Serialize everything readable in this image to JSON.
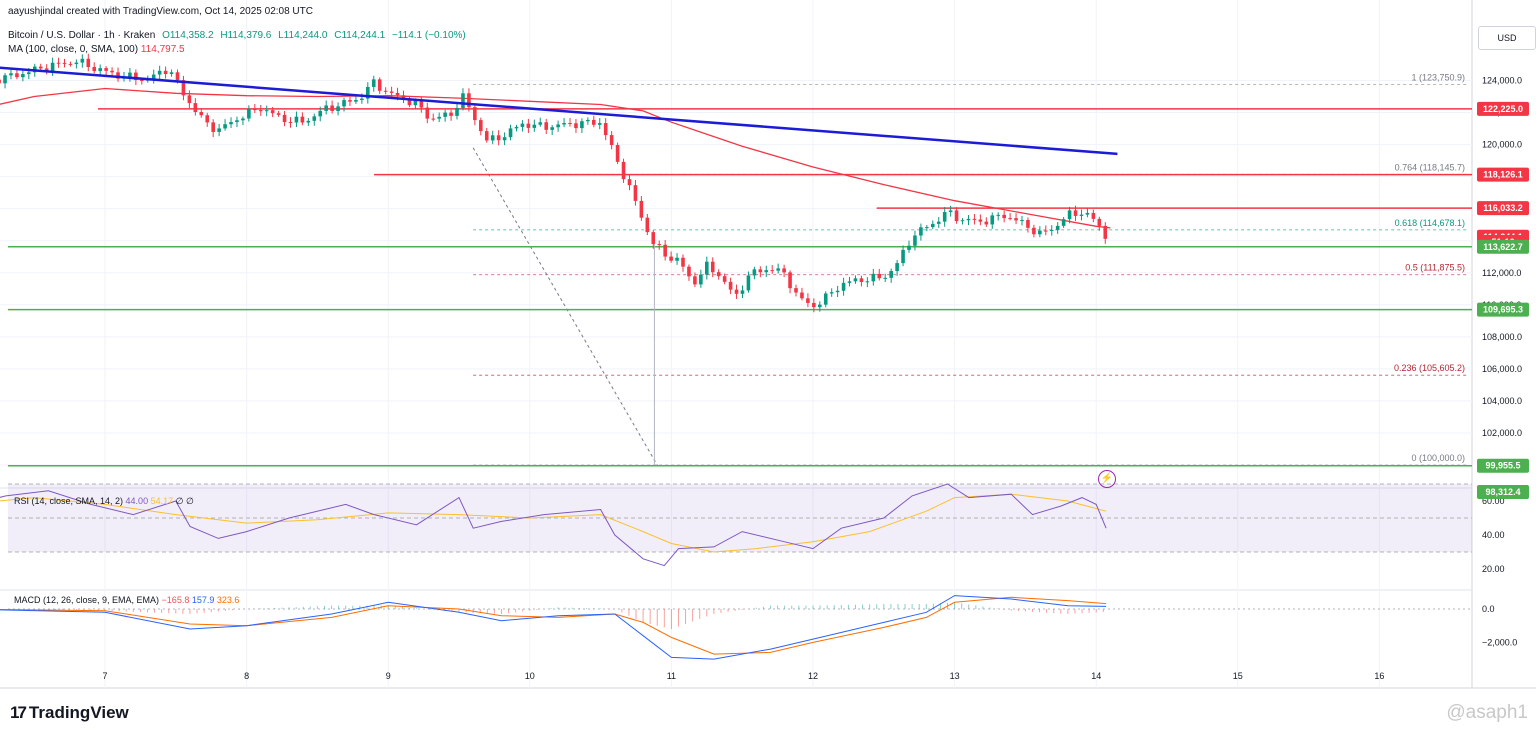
{
  "header": {
    "author_line": "aayushjindal created with TradingView.com, Oct 14, 2025 02:08 UTC",
    "symbol": "Bitcoin / U.S. Dollar · 1h · Kraken",
    "open": "O114,358.2",
    "high": "H114,379.6",
    "low": "L114,244.0",
    "close": "C114,244.1",
    "change": "−114.1 (−0.10%)",
    "ma_label": "MA (100, close, 0, SMA, 100)",
    "ma_value": "114,797.5"
  },
  "price_scale": {
    "currency": "USD"
  },
  "colors": {
    "up": "#089981",
    "down": "#f23645",
    "ma": "#f23645",
    "trendline": "#1c1cd6",
    "support": "#4caf50",
    "resistance": "#f23645",
    "rsi": "#7e57c2",
    "rsi_ma": "#fbc02d",
    "macd": "#2962ff",
    "signal": "#ff6d00"
  },
  "chart_data": {
    "type": "candlestick",
    "y_ticks": [
      "124,000.0",
      "122,000.0",
      "120,000.0",
      "118,000.0",
      "116,000.0",
      "114,000.0",
      "112,000.0",
      "110,000.0",
      "108,000.0",
      "106,000.0",
      "104,000.0",
      "102,000.0",
      "100,000.0"
    ],
    "x_ticks": [
      "7",
      "8",
      "9",
      "10",
      "11",
      "12",
      "13",
      "14",
      "15",
      "16"
    ],
    "price_labels": [
      {
        "text": "122,225.0",
        "price": 122225,
        "color": "#f23645"
      },
      {
        "text": "118,126.1",
        "price": 118126.1,
        "color": "#f23645"
      },
      {
        "text": "116,033.2",
        "price": 116033.2,
        "color": "#f23645"
      },
      {
        "text": "114,244.1",
        "price": 114244.1,
        "color": "#f23645"
      },
      {
        "text": "51:16",
        "price": 113922,
        "color": "#f23645"
      },
      {
        "text": "113,622.7",
        "price": 113622.7,
        "color": "#4caf50"
      },
      {
        "text": "109,695.3",
        "price": 109695.3,
        "color": "#4caf50"
      },
      {
        "text": "99,955.5",
        "price": 99955.5,
        "color": "#4caf50"
      },
      {
        "text": "98,312.4",
        "price": 98312.4,
        "color": "#4caf50"
      }
    ],
    "fib_levels": [
      {
        "label": "1 (123,750.9)",
        "price": 123750.9
      },
      {
        "label": "0.764 (118,145.7)",
        "price": 118145.7
      },
      {
        "label": "0.618 (114,678.1)",
        "price": 114678.1
      },
      {
        "label": "0.5 (111,875.5)",
        "price": 111875.5
      },
      {
        "label": "0.236 (105,605.2)",
        "price": 105605.2
      },
      {
        "label": "0 (100,000.0)",
        "price": 100000
      }
    ],
    "horizontal_lines": [
      {
        "price": 122225,
        "color": "#f23645",
        "from_day": 6.95
      },
      {
        "price": 118126.1,
        "color": "#f23645",
        "from_day": 8.9
      },
      {
        "price": 116033.2,
        "color": "#f23645",
        "from_day": 12.45
      },
      {
        "price": 113622.7,
        "color": "#4caf50",
        "from_day": 6.0
      },
      {
        "price": 109695.3,
        "color": "#4caf50",
        "from_day": 6.0
      },
      {
        "price": 99955.5,
        "color": "#4caf50",
        "from_day": 6.0
      }
    ],
    "trendline": {
      "from": [
        6.25,
        124800
      ],
      "to": [
        14.15,
        119420
      ]
    },
    "fib_diagonal": {
      "from": [
        9.6,
        119800
      ],
      "to": [
        10.9,
        100000
      ]
    },
    "path_points": [
      [
        6.2,
        124000
      ],
      [
        6.4,
        124400
      ],
      [
        6.6,
        124900
      ],
      [
        6.8,
        125200
      ],
      [
        6.95,
        124700
      ],
      [
        7.1,
        124300
      ],
      [
        7.3,
        124050
      ],
      [
        7.45,
        124800
      ],
      [
        7.55,
        123200
      ],
      [
        7.7,
        121400
      ],
      [
        7.8,
        120900
      ],
      [
        7.95,
        121700
      ],
      [
        8.1,
        122300
      ],
      [
        8.25,
        121600
      ],
      [
        8.4,
        121400
      ],
      [
        8.55,
        122200
      ],
      [
        8.7,
        122600
      ],
      [
        8.8,
        122900
      ],
      [
        8.9,
        123900
      ],
      [
        9.0,
        123200
      ],
      [
        9.1,
        122900
      ],
      [
        9.2,
        122500
      ],
      [
        9.3,
        121600
      ],
      [
        9.45,
        121900
      ],
      [
        9.52,
        123100
      ],
      [
        9.6,
        121800
      ],
      [
        9.7,
        120200
      ],
      [
        9.8,
        120500
      ],
      [
        9.95,
        121300
      ],
      [
        10.1,
        121100
      ],
      [
        10.3,
        121300
      ],
      [
        10.5,
        121400
      ],
      [
        10.6,
        119300
      ],
      [
        10.7,
        117400
      ],
      [
        10.8,
        115200
      ],
      [
        10.87,
        113900
      ],
      [
        10.95,
        113100
      ],
      [
        11.05,
        112800
      ],
      [
        11.15,
        111300
      ],
      [
        11.25,
        112400
      ],
      [
        11.35,
        111800
      ],
      [
        11.45,
        110400
      ],
      [
        11.55,
        111900
      ],
      [
        11.7,
        112300
      ],
      [
        11.8,
        111900
      ],
      [
        11.9,
        110400
      ],
      [
        12.0,
        109900
      ],
      [
        12.1,
        110500
      ],
      [
        12.2,
        111300
      ],
      [
        12.35,
        111600
      ],
      [
        12.5,
        111700
      ],
      [
        12.6,
        112600
      ],
      [
        12.7,
        114300
      ],
      [
        12.85,
        115100
      ],
      [
        12.95,
        115800
      ],
      [
        13.05,
        115300
      ],
      [
        13.2,
        115200
      ],
      [
        13.35,
        115600
      ],
      [
        13.5,
        115000
      ],
      [
        13.6,
        114400
      ],
      [
        13.7,
        114800
      ],
      [
        13.8,
        115600
      ],
      [
        13.9,
        115800
      ],
      [
        14.0,
        115200
      ],
      [
        14.07,
        114244
      ]
    ],
    "ma_points": [
      [
        6.0,
        122000
      ],
      [
        6.5,
        123000
      ],
      [
        7.0,
        123500
      ],
      [
        7.5,
        123200
      ],
      [
        8.0,
        123050
      ],
      [
        8.5,
        123000
      ],
      [
        9.0,
        123050
      ],
      [
        9.5,
        122900
      ],
      [
        10.0,
        122700
      ],
      [
        10.5,
        122500
      ],
      [
        10.8,
        122100
      ],
      [
        11.0,
        121400
      ],
      [
        11.5,
        119900
      ],
      [
        12.0,
        118600
      ],
      [
        12.5,
        117500
      ],
      [
        13.0,
        116500
      ],
      [
        13.5,
        115700
      ],
      [
        14.0,
        114900
      ],
      [
        14.1,
        114797.5
      ]
    ],
    "rsi": {
      "label": "RSI (14, close, SMA, 14, 2)",
      "value": "44.00",
      "ma_value": "54.17",
      "extra": "∅ ∅",
      "ticks": [
        "60.00",
        "40.00",
        "20.00"
      ],
      "points": [
        [
          6.0,
          57
        ],
        [
          6.3,
          63
        ],
        [
          6.6,
          66
        ],
        [
          6.9,
          58
        ],
        [
          7.2,
          52
        ],
        [
          7.5,
          60
        ],
        [
          7.6,
          45
        ],
        [
          7.8,
          38
        ],
        [
          8.0,
          42
        ],
        [
          8.3,
          50
        ],
        [
          8.7,
          58
        ],
        [
          8.9,
          52
        ],
        [
          9.2,
          46
        ],
        [
          9.5,
          62
        ],
        [
          9.6,
          44
        ],
        [
          9.8,
          48
        ],
        [
          10.1,
          52
        ],
        [
          10.5,
          55
        ],
        [
          10.6,
          40
        ],
        [
          10.8,
          26
        ],
        [
          10.95,
          22
        ],
        [
          11.05,
          32
        ],
        [
          11.3,
          33
        ],
        [
          11.5,
          42
        ],
        [
          11.8,
          36
        ],
        [
          12.0,
          32
        ],
        [
          12.2,
          44
        ],
        [
          12.5,
          50
        ],
        [
          12.7,
          63
        ],
        [
          12.95,
          70
        ],
        [
          13.1,
          62
        ],
        [
          13.4,
          64
        ],
        [
          13.55,
          52
        ],
        [
          13.75,
          57
        ],
        [
          13.9,
          62
        ],
        [
          14.0,
          58
        ],
        [
          14.07,
          44
        ]
      ],
      "ma_points": [
        [
          6.0,
          58
        ],
        [
          6.5,
          62
        ],
        [
          7.0,
          58
        ],
        [
          7.5,
          52
        ],
        [
          8.0,
          47
        ],
        [
          8.5,
          49
        ],
        [
          9.0,
          53
        ],
        [
          9.5,
          52
        ],
        [
          10.0,
          50
        ],
        [
          10.5,
          52
        ],
        [
          10.8,
          42
        ],
        [
          11.0,
          35
        ],
        [
          11.3,
          30
        ],
        [
          11.6,
          32
        ],
        [
          12.0,
          36
        ],
        [
          12.4,
          42
        ],
        [
          12.8,
          54
        ],
        [
          13.0,
          62
        ],
        [
          13.4,
          64
        ],
        [
          13.8,
          60
        ],
        [
          14.07,
          54
        ]
      ]
    },
    "macd": {
      "label": "MACD (12, 26, close, 9, EMA, EMA)",
      "hist": "−165.8",
      "macd": "157.9",
      "signal": "323.6",
      "ticks": [
        "0.0",
        "−2,000.0"
      ],
      "macd_points": [
        [
          6.0,
          0
        ],
        [
          7.0,
          -200
        ],
        [
          7.6,
          -1200
        ],
        [
          8.0,
          -1000
        ],
        [
          8.6,
          -300
        ],
        [
          9.0,
          400
        ],
        [
          9.5,
          -200
        ],
        [
          9.8,
          -700
        ],
        [
          10.2,
          -400
        ],
        [
          10.6,
          -300
        ],
        [
          10.8,
          -1600
        ],
        [
          11.0,
          -2900
        ],
        [
          11.3,
          -3000
        ],
        [
          11.7,
          -2400
        ],
        [
          12.0,
          -1800
        ],
        [
          12.5,
          -800
        ],
        [
          12.8,
          -200
        ],
        [
          13.0,
          800
        ],
        [
          13.4,
          600
        ],
        [
          13.8,
          200
        ],
        [
          14.07,
          157.9
        ]
      ],
      "signal_points": [
        [
          6.0,
          0
        ],
        [
          7.0,
          -100
        ],
        [
          7.6,
          -900
        ],
        [
          8.0,
          -1000
        ],
        [
          8.6,
          -500
        ],
        [
          9.0,
          200
        ],
        [
          9.5,
          0
        ],
        [
          9.8,
          -400
        ],
        [
          10.2,
          -500
        ],
        [
          10.6,
          -300
        ],
        [
          10.8,
          -800
        ],
        [
          11.0,
          -1700
        ],
        [
          11.3,
          -2700
        ],
        [
          11.7,
          -2600
        ],
        [
          12.0,
          -2000
        ],
        [
          12.5,
          -1100
        ],
        [
          12.8,
          -500
        ],
        [
          13.0,
          400
        ],
        [
          13.4,
          700
        ],
        [
          13.8,
          500
        ],
        [
          14.07,
          323.6
        ]
      ]
    }
  },
  "footer": {
    "brand": "TradingView",
    "watermark": "@asaph1"
  }
}
